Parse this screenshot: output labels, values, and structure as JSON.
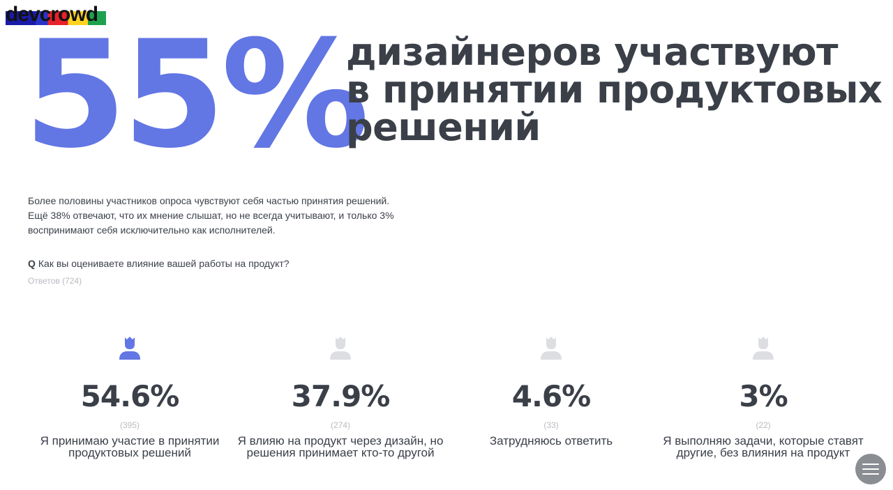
{
  "brand": {
    "logo_text": "devcrowd"
  },
  "hero": {
    "percent": "55%",
    "headline_lines": [
      "дизайнеров участвуют",
      "в принятии продуктовых",
      "решений"
    ]
  },
  "description": "Более половины участников опроса чувствуют себя частью принятия решений. Ещё 38% отвечают, что их мнение слышат, но не всегда учитывают, и только 3% воспринимают себя исключительно как исполнителей.",
  "question": {
    "marker": "Q",
    "text": "Как вы оцениваете влияние вашей работы на продукт?",
    "answers_label": "Ответов (724)"
  },
  "colors": {
    "accent": "#6276e4",
    "text": "#3a3f48",
    "muted": "#b7bac0",
    "icon_inactive": "#dcdee2"
  },
  "stats": [
    {
      "percent": "54.6%",
      "count": "(395)",
      "label": "Я принимаю участие в принятии продуктовых решений",
      "highlighted": true,
      "icon": "person-icon"
    },
    {
      "percent": "37.9%",
      "count": "(274)",
      "label": "Я влияю на продукт через дизайн, но решения принимает кто-то другой",
      "highlighted": false,
      "icon": "person-icon"
    },
    {
      "percent": "4.6%",
      "count": "(33)",
      "label": "Затрудняюсь ответить",
      "highlighted": false,
      "icon": "person-icon"
    },
    {
      "percent": "3%",
      "count": "(22)",
      "label": "Я выполняю задачи, которые ставят другие, без влияния на продукт",
      "highlighted": false,
      "icon": "person-icon"
    }
  ],
  "menu": {
    "icon": "hamburger-icon"
  }
}
